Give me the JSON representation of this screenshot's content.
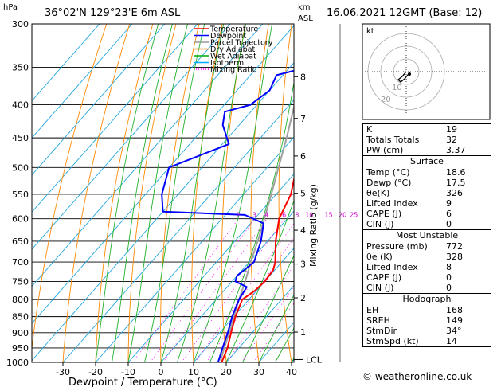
{
  "header": {
    "location": "36°02'N 129°23'E 6m ASL",
    "datetime": "16.06.2021 12GMT (Base: 12)",
    "hpa_label": "hPa",
    "km_label": "km",
    "asl_label": "ASL"
  },
  "chart_data": {
    "type": "skew-t log-p",
    "xlabel": "Dewpoint / Temperature (°C)",
    "y2label": "Mixing Ratio (g/kg)",
    "x_ticks": [
      -30,
      -20,
      -10,
      0,
      10,
      20,
      30,
      40
    ],
    "pressure_levels": [
      300,
      350,
      400,
      450,
      500,
      550,
      600,
      650,
      700,
      750,
      800,
      850,
      900,
      950,
      1000
    ],
    "km_ticks": [
      {
        "label": "1",
        "p": 898
      },
      {
        "label": "2",
        "p": 795
      },
      {
        "label": "3",
        "p": 705
      },
      {
        "label": "4",
        "p": 625
      },
      {
        "label": "5",
        "p": 548
      },
      {
        "label": "6",
        "p": 480
      },
      {
        "label": "7",
        "p": 420
      },
      {
        "label": "8",
        "p": 362
      }
    ],
    "lcl_label": "LCL",
    "lcl_p": 990,
    "mixing_ratio_labels": [
      "2",
      "3",
      "4",
      "6",
      "8",
      "10",
      "15",
      "20",
      "25"
    ],
    "mixing_ratio_values": [
      2,
      3,
      4,
      6,
      8,
      10,
      15,
      20,
      25
    ],
    "legend": [
      {
        "label": "Temperature",
        "color": "#ff0000"
      },
      {
        "label": "Dewpoint",
        "color": "#0000ff"
      },
      {
        "label": "Parcel Trajectory",
        "color": "#999999"
      },
      {
        "label": "Dry Adiabat",
        "color": "#ff8800"
      },
      {
        "label": "Wet Adiabat",
        "color": "#00aa00"
      },
      {
        "label": "Isotherm",
        "color": "#00aaff"
      },
      {
        "label": "Mixing Ratio",
        "color": "#ff00ff"
      }
    ],
    "temperature": [
      {
        "p": 1000,
        "t": 18.6
      },
      {
        "p": 950,
        "t": 16.5
      },
      {
        "p": 900,
        "t": 13.5
      },
      {
        "p": 850,
        "t": 10.5
      },
      {
        "p": 800,
        "t": 8.0
      },
      {
        "p": 775,
        "t": 9.5
      },
      {
        "p": 750,
        "t": 10.0
      },
      {
        "p": 720,
        "t": 9.5
      },
      {
        "p": 700,
        "t": 8.0
      },
      {
        "p": 650,
        "t": 2.5
      },
      {
        "p": 600,
        "t": -2.5
      },
      {
        "p": 550,
        "t": -5.5
      },
      {
        "p": 500,
        "t": -11.0
      },
      {
        "p": 450,
        "t": -17.0
      },
      {
        "p": 420,
        "t": -20.0
      },
      {
        "p": 400,
        "t": -22.5
      },
      {
        "p": 370,
        "t": -28.0
      },
      {
        "p": 350,
        "t": -32.0
      },
      {
        "p": 330,
        "t": -35.0
      },
      {
        "p": 310,
        "t": -39.0
      },
      {
        "p": 300,
        "t": -40.5
      }
    ],
    "dewpoint": [
      {
        "p": 1000,
        "t": 17.5
      },
      {
        "p": 950,
        "t": 15.0
      },
      {
        "p": 900,
        "t": 12.5
      },
      {
        "p": 850,
        "t": 9.5
      },
      {
        "p": 800,
        "t": 7.0
      },
      {
        "p": 765,
        "t": 6.0
      },
      {
        "p": 750,
        "t": 1.0
      },
      {
        "p": 735,
        "t": 0.0
      },
      {
        "p": 700,
        "t": 1.5
      },
      {
        "p": 650,
        "t": -2.0
      },
      {
        "p": 610,
        "t": -6.0
      },
      {
        "p": 592,
        "t": -14.0
      },
      {
        "p": 585,
        "t": -40.0
      },
      {
        "p": 550,
        "t": -45.0
      },
      {
        "p": 500,
        "t": -50.0
      },
      {
        "p": 460,
        "t": -38.0
      },
      {
        "p": 430,
        "t": -45.0
      },
      {
        "p": 410,
        "t": -48.0
      },
      {
        "p": 400,
        "t": -42.0
      },
      {
        "p": 380,
        "t": -40.0
      },
      {
        "p": 360,
        "t": -42.0
      },
      {
        "p": 340,
        "t": -27.0
      },
      {
        "p": 332,
        "t": -34.0
      },
      {
        "p": 310,
        "t": -46.0
      },
      {
        "p": 300,
        "t": -49.0
      }
    ],
    "parcel": [
      {
        "p": 1000,
        "t": 18.6
      },
      {
        "p": 990,
        "t": 17.6
      },
      {
        "p": 950,
        "t": 15.5
      },
      {
        "p": 900,
        "t": 13.0
      },
      {
        "p": 850,
        "t": 10.0
      },
      {
        "p": 800,
        "t": 7.0
      },
      {
        "p": 750,
        "t": 4.0
      },
      {
        "p": 700,
        "t": 0.5
      },
      {
        "p": 650,
        "t": -3.0
      },
      {
        "p": 600,
        "t": -7.0
      },
      {
        "p": 550,
        "t": -11.5
      },
      {
        "p": 500,
        "t": -16.5
      },
      {
        "p": 450,
        "t": -22.0
      },
      {
        "p": 400,
        "t": -28.5
      },
      {
        "p": 350,
        "t": -36.0
      },
      {
        "p": 300,
        "t": -45.0
      }
    ]
  },
  "hodograph": {
    "label": "kt",
    "ring_labels": [
      "10",
      "20"
    ]
  },
  "indices": {
    "rows": [
      {
        "label": "K",
        "value": "19"
      },
      {
        "label": "Totals Totals",
        "value": "32"
      },
      {
        "label": "PW (cm)",
        "value": "3.37"
      }
    ]
  },
  "surface": {
    "title": "Surface",
    "rows": [
      {
        "label": "Temp (°C)",
        "value": "18.6"
      },
      {
        "label": "Dewp (°C)",
        "value": "17.5"
      },
      {
        "label": "θe(K)",
        "value": "326"
      },
      {
        "label": "Lifted Index",
        "value": "9"
      },
      {
        "label": "CAPE (J)",
        "value": "6"
      },
      {
        "label": "CIN (J)",
        "value": "0"
      }
    ]
  },
  "most_unstable": {
    "title": "Most Unstable",
    "rows": [
      {
        "label": "Pressure (mb)",
        "value": "772"
      },
      {
        "label": "θe (K)",
        "value": "328"
      },
      {
        "label": "Lifted Index",
        "value": "8"
      },
      {
        "label": "CAPE (J)",
        "value": "0"
      },
      {
        "label": "CIN (J)",
        "value": "0"
      }
    ]
  },
  "hodograph_stats": {
    "title": "Hodograph",
    "rows": [
      {
        "label": "EH",
        "value": "168"
      },
      {
        "label": "SREH",
        "value": "149"
      },
      {
        "label": "StmDir",
        "value": "34°"
      },
      {
        "label": "StmSpd (kt)",
        "value": "14"
      }
    ]
  },
  "credit": "© weatheronline.co.uk"
}
